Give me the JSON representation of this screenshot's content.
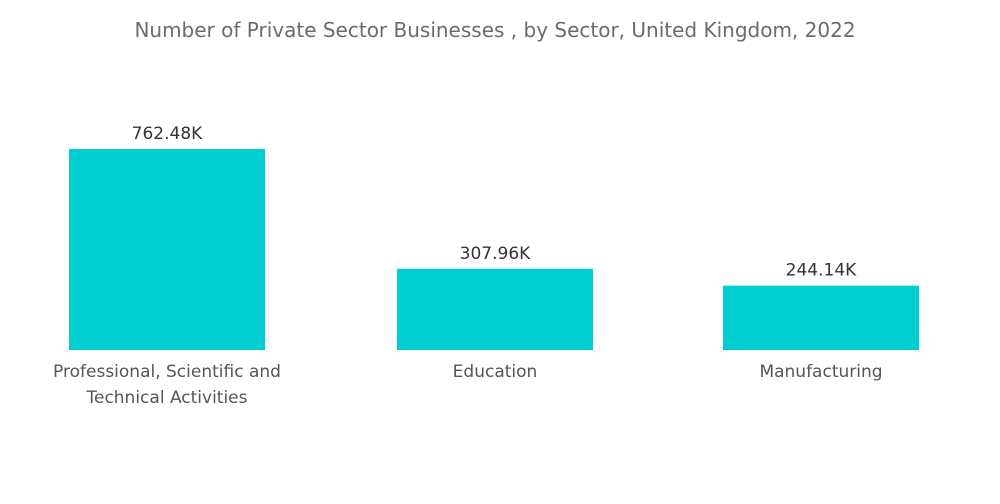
{
  "chart_data": {
    "type": "bar",
    "title": "Number of Private Sector Businesses , by Sector, United Kingdom, 2022",
    "categories": [
      [
        "Professional, Scientific and",
        "Technical Activities"
      ],
      [
        "Education"
      ],
      [
        "Manufacturing"
      ]
    ],
    "values": [
      762.48,
      307.96,
      244.14
    ],
    "value_labels": [
      "762.48K",
      "307.96K",
      "244.14K"
    ],
    "unit": "K",
    "ylim": [
      0,
      762.48
    ],
    "grid": false,
    "legend": "none",
    "bar_color": "#00ced1"
  }
}
